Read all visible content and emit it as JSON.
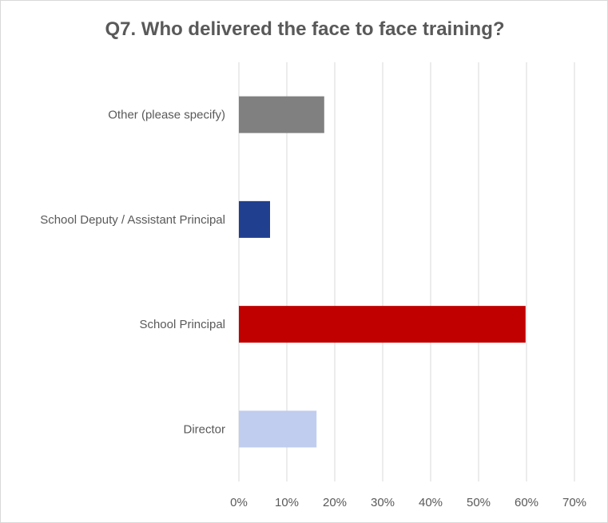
{
  "chart_data": {
    "type": "bar",
    "orientation": "horizontal",
    "title": "Q7. Who delivered the face to face training?",
    "categories": [
      "Other (please specify)",
      "School Deputy / Assistant Principal",
      "School Principal",
      "Director"
    ],
    "values": [
      17.8,
      6.5,
      59.8,
      16.2
    ],
    "value_unit": "%",
    "colors": [
      "#808080",
      "#203f8f",
      "#c00000",
      "#c0cdee"
    ],
    "xlim": [
      0,
      70
    ],
    "x_ticks": [
      "0%",
      "10%",
      "20%",
      "30%",
      "40%",
      "50%",
      "60%",
      "70%"
    ],
    "grid": true,
    "legend": "none"
  }
}
